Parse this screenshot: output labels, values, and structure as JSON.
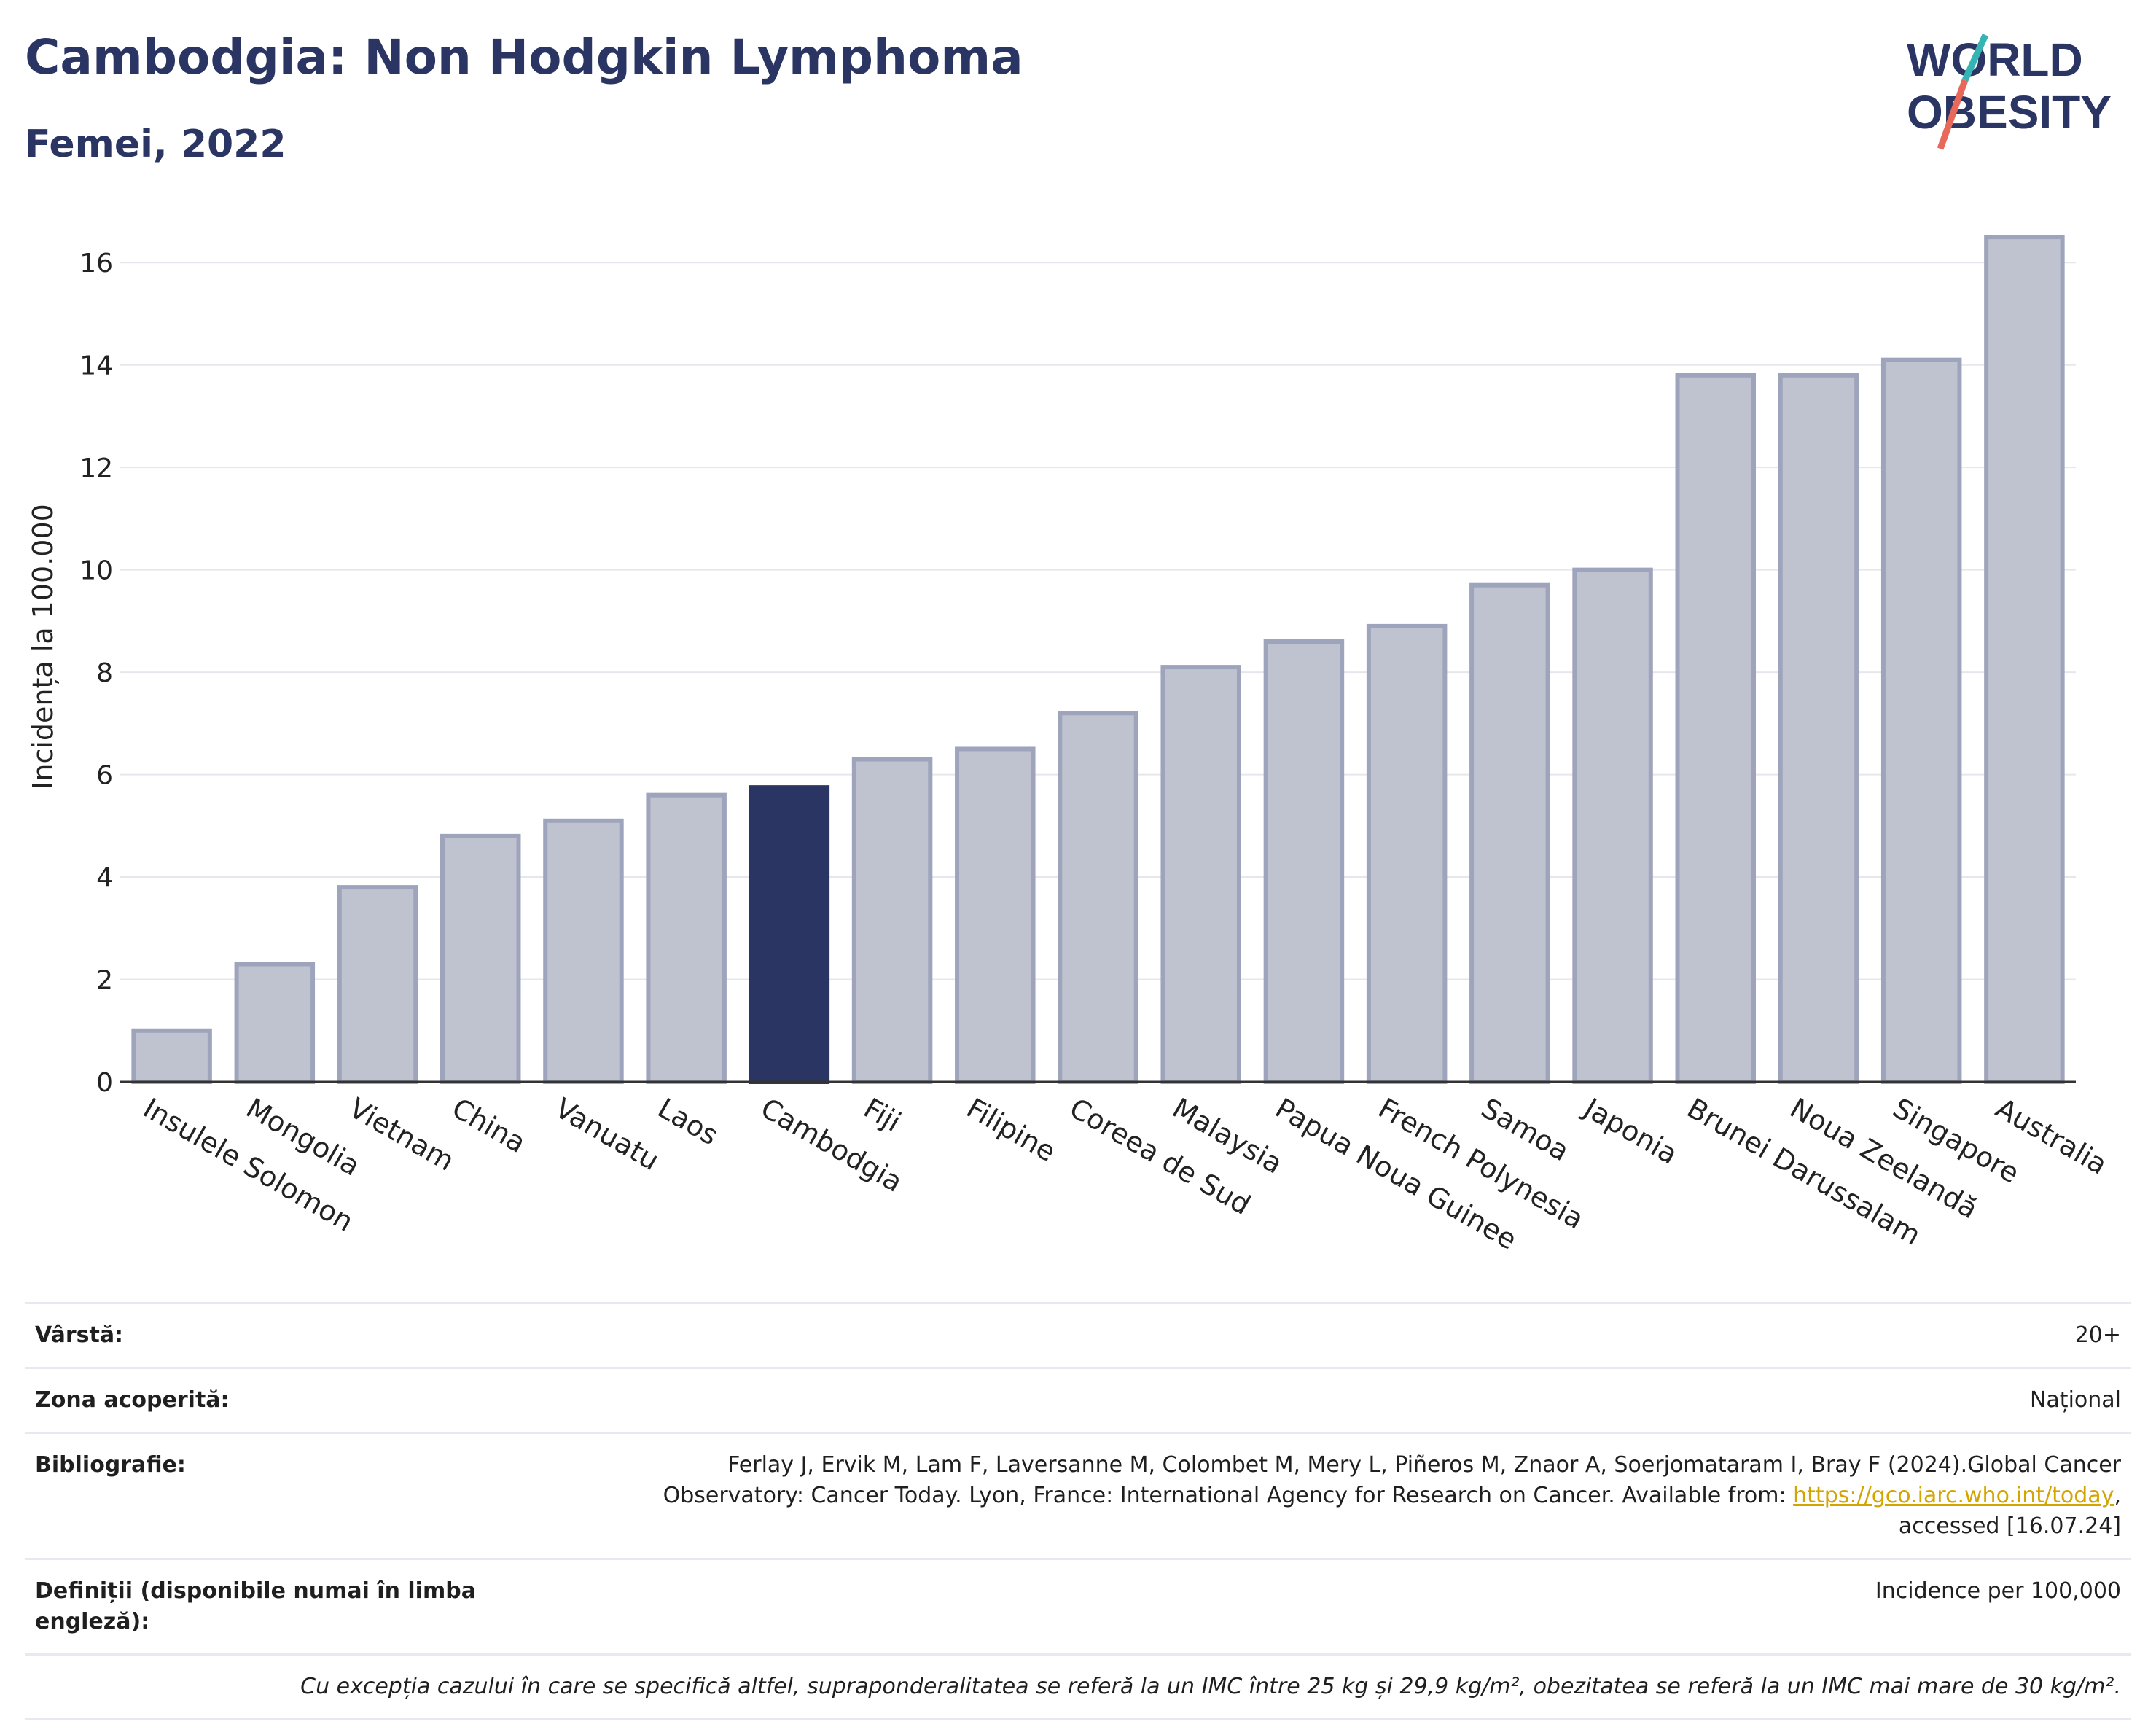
{
  "header": {
    "title": "Cambodgia: Non Hodgkin Lymphoma",
    "subtitle": "Femei, 2022",
    "logo_line1": "WORLD",
    "logo_line2": "OBESITY"
  },
  "colors": {
    "accent": "#2b3563",
    "bar_default": "#bfc3d0",
    "bar_edge": "#9ea4bb",
    "bar_highlight": "#2b3563",
    "logo_teal": "#36b3b3",
    "logo_red": "#e8685a"
  },
  "chart_data": {
    "type": "bar",
    "ylabel": "Incidența la 100.000",
    "xlabel": "",
    "ylim": [
      0,
      17
    ],
    "yticks": [
      0,
      2,
      4,
      6,
      8,
      10,
      12,
      14,
      16
    ],
    "grid": true,
    "categories": [
      "Insulele Solomon",
      "Mongolia",
      "Vietnam",
      "China",
      "Vanuatu",
      "Laos",
      "Cambodgia",
      "Fiji",
      "Filipine",
      "Coreea de Sud",
      "Malaysia",
      "Papua Noua Guinee",
      "French Polynesia",
      "Samoa",
      "Japonia",
      "Brunei Darussalam",
      "Noua Zeelandă",
      "Singapore",
      "Australia"
    ],
    "values": [
      1.0,
      2.3,
      3.8,
      4.8,
      5.1,
      5.6,
      5.75,
      6.3,
      6.5,
      7.2,
      8.1,
      8.6,
      8.9,
      9.7,
      10.0,
      13.8,
      13.8,
      14.1,
      16.5
    ],
    "highlight": "Cambodgia"
  },
  "info": {
    "age_label": "Vârstă:",
    "age_value": "20+",
    "coverage_label": "Zona acoperită:",
    "coverage_value": "Național",
    "biblio_label": "Bibliografie:",
    "biblio_line1": "Ferlay J, Ervik M, Lam F, Laversanne M, Colombet M, Mery L, Piñeros M, Znaor A, Soerjomataram I, Bray F (2024).Global Cancer",
    "biblio_line2_pre": "Observatory: Cancer Today. Lyon, France: International Agency for Research on Cancer. Available from: ",
    "biblio_link": "https://gco.iarc.who.int/today",
    "biblio_line2_post": ",",
    "biblio_line3": "accessed [16.07.24]",
    "def_label": "Definiții (disponibile numai în limba engleză):",
    "def_value": "Incidence per 100,000",
    "note": "Cu excepția cazului în care se specifică altfel, supraponderalitatea se referă la un IMC între 25 kg și 29,9 kg/m², obezitatea se referă la un IMC mai mare de 30 kg/m²."
  }
}
